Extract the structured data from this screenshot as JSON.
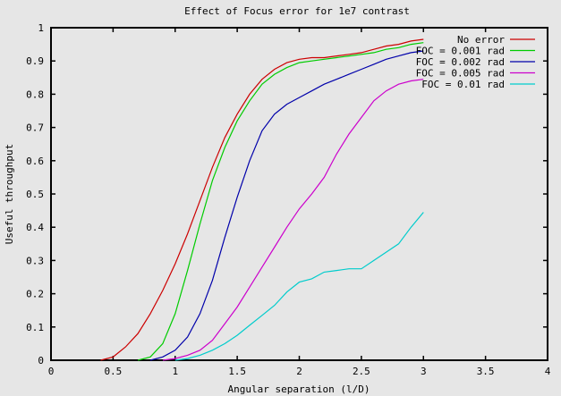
{
  "chart_data": {
    "type": "line",
    "title": "Effect of Focus error for 1e7 contrast",
    "xlabel": "Angular separation (l/D)",
    "ylabel": "Useful throughput",
    "xlim": [
      0,
      4
    ],
    "ylim": [
      0,
      1
    ],
    "xticks": [
      "0",
      "0.5",
      "1",
      "1.5",
      "2",
      "2.5",
      "3",
      "3.5",
      "4"
    ],
    "yticks": [
      "0",
      "0.1",
      "0.2",
      "0.3",
      "0.4",
      "0.5",
      "0.6",
      "0.7",
      "0.8",
      "0.9",
      "1"
    ],
    "grid": false,
    "legend_position": "top-right",
    "series": [
      {
        "name": "No error",
        "color": "#cc0000",
        "x": [
          0.4,
          0.5,
          0.6,
          0.7,
          0.8,
          0.9,
          1.0,
          1.1,
          1.2,
          1.3,
          1.4,
          1.5,
          1.6,
          1.7,
          1.8,
          1.9,
          2.0,
          2.1,
          2.2,
          2.3,
          2.4,
          2.5,
          2.6,
          2.7,
          2.8,
          2.9,
          3.0
        ],
        "y": [
          0.0,
          0.01,
          0.04,
          0.08,
          0.14,
          0.21,
          0.29,
          0.38,
          0.48,
          0.58,
          0.67,
          0.74,
          0.8,
          0.845,
          0.875,
          0.895,
          0.905,
          0.91,
          0.91,
          0.915,
          0.92,
          0.925,
          0.935,
          0.945,
          0.95,
          0.96,
          0.965
        ]
      },
      {
        "name": "FOC = 0.001 rad",
        "color": "#00cc00",
        "x": [
          0.7,
          0.8,
          0.9,
          1.0,
          1.1,
          1.2,
          1.3,
          1.4,
          1.5,
          1.6,
          1.7,
          1.8,
          1.9,
          2.0,
          2.1,
          2.2,
          2.3,
          2.4,
          2.5,
          2.6,
          2.7,
          2.8,
          2.9,
          3.0
        ],
        "y": [
          0.0,
          0.01,
          0.05,
          0.14,
          0.27,
          0.41,
          0.54,
          0.64,
          0.72,
          0.78,
          0.83,
          0.86,
          0.88,
          0.895,
          0.9,
          0.905,
          0.91,
          0.915,
          0.92,
          0.925,
          0.935,
          0.94,
          0.95,
          0.955
        ]
      },
      {
        "name": "FOC = 0.002 rad",
        "color": "#0000aa",
        "x": [
          0.8,
          0.9,
          1.0,
          1.1,
          1.2,
          1.3,
          1.4,
          1.5,
          1.6,
          1.7,
          1.8,
          1.9,
          2.0,
          2.1,
          2.2,
          2.3,
          2.4,
          2.5,
          2.6,
          2.7,
          2.8,
          2.9,
          3.0
        ],
        "y": [
          0.0,
          0.01,
          0.03,
          0.07,
          0.14,
          0.24,
          0.37,
          0.49,
          0.6,
          0.69,
          0.74,
          0.77,
          0.79,
          0.81,
          0.83,
          0.845,
          0.86,
          0.875,
          0.89,
          0.905,
          0.915,
          0.925,
          0.93
        ]
      },
      {
        "name": "FOC = 0.005 rad",
        "color": "#cc00cc",
        "x": [
          0.9,
          1.0,
          1.1,
          1.2,
          1.3,
          1.4,
          1.5,
          1.6,
          1.7,
          1.8,
          1.9,
          2.0,
          2.1,
          2.2,
          2.3,
          2.4,
          2.5,
          2.6,
          2.7,
          2.8,
          2.9,
          3.0
        ],
        "y": [
          0.0,
          0.005,
          0.015,
          0.03,
          0.06,
          0.11,
          0.16,
          0.22,
          0.28,
          0.34,
          0.4,
          0.455,
          0.5,
          0.55,
          0.62,
          0.68,
          0.73,
          0.78,
          0.81,
          0.83,
          0.84,
          0.845
        ]
      },
      {
        "name": "FOC = 0.01 rad",
        "color": "#00cccc",
        "x": [
          1.0,
          1.1,
          1.2,
          1.3,
          1.4,
          1.5,
          1.6,
          1.7,
          1.8,
          1.9,
          2.0,
          2.1,
          2.2,
          2.3,
          2.4,
          2.5,
          2.6,
          2.7,
          2.8,
          2.9,
          3.0
        ],
        "y": [
          0.0,
          0.005,
          0.015,
          0.03,
          0.05,
          0.075,
          0.105,
          0.135,
          0.165,
          0.205,
          0.235,
          0.245,
          0.265,
          0.27,
          0.275,
          0.275,
          0.3,
          0.325,
          0.35,
          0.4,
          0.445
        ]
      }
    ]
  }
}
